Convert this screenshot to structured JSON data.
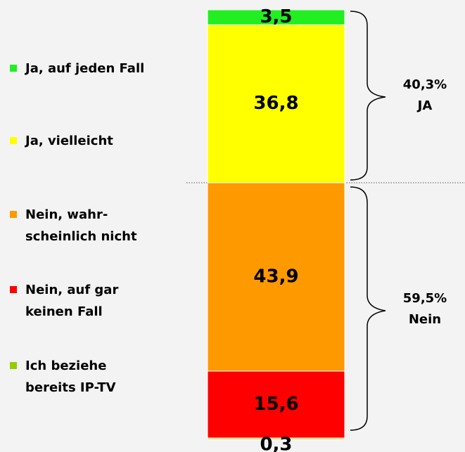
{
  "chart_data": {
    "type": "bar",
    "stacked": true,
    "series": [
      {
        "name": "Ja, auf jeden Fall",
        "color": "#22ee22",
        "values": [
          3.5
        ],
        "value_labels": [
          "3,5"
        ]
      },
      {
        "name": "Ja, vielleicht",
        "color": "#ffff00",
        "values": [
          36.8
        ],
        "value_labels": [
          "36,8"
        ]
      },
      {
        "name": "Nein, wahr-\nscheinlich  nicht",
        "color": "#ff9900",
        "values": [
          43.9
        ],
        "value_labels": [
          "43,9"
        ]
      },
      {
        "name": "Nein, auf gar\nkeinen Fall",
        "color": "#ff0000",
        "values": [
          15.6
        ],
        "value_labels": [
          "15,6"
        ]
      },
      {
        "name": "Ich beziehe\nbereits IP-TV",
        "color": "#99cc00",
        "values": [
          0.3
        ],
        "value_labels": [
          "0,3"
        ]
      }
    ],
    "annotations": [
      "40,3%\nJA",
      "59,5%\nNein"
    ]
  }
}
